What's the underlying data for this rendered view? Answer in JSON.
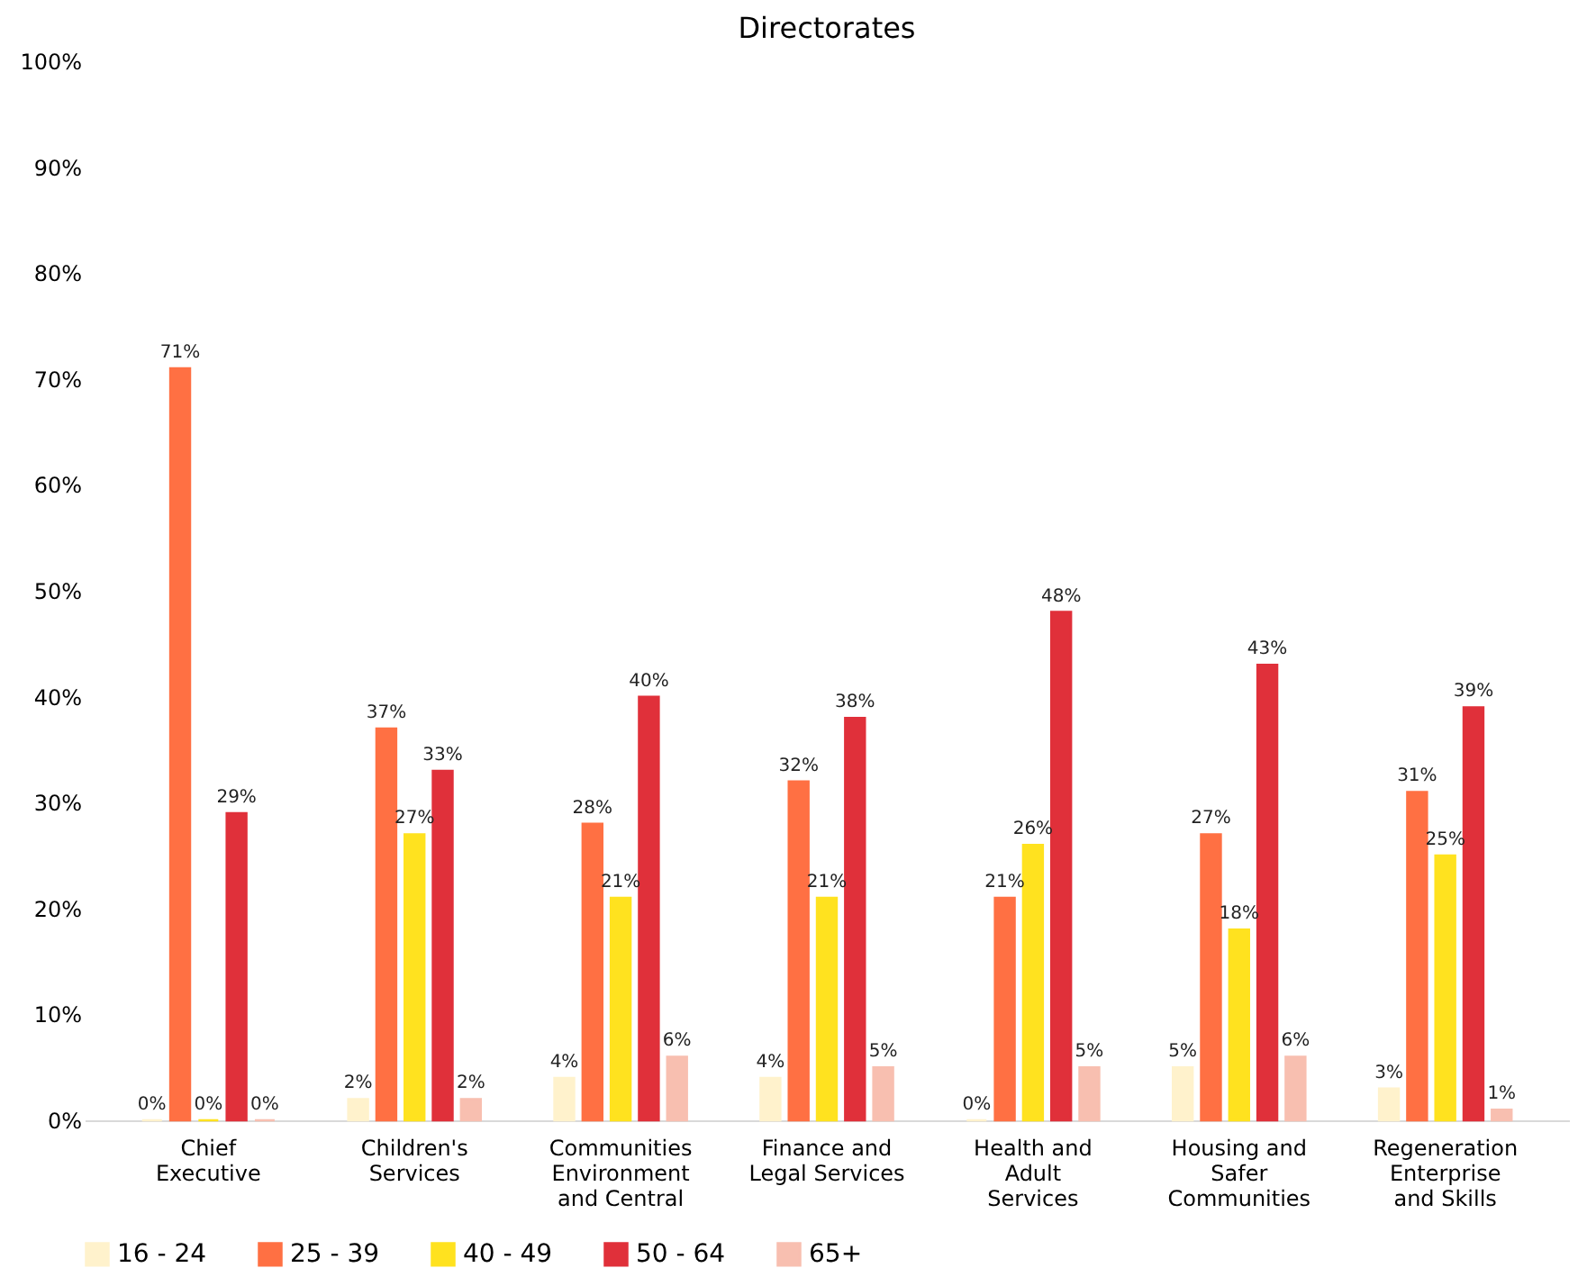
{
  "chart_data": {
    "type": "bar",
    "title": "Directorates",
    "categories": [
      "Chief\nExecutive",
      "Children's\nServices",
      "Communities\nEnvironment\nand Central",
      "Finance and\nLegal Services",
      "Health and\nAdult\nServices",
      "Housing and\nSafer\nCommunities",
      "Regeneration\nEnterprise\nand Skills"
    ],
    "series": [
      {
        "name": "16 - 24",
        "color": "#fff2cc",
        "values": [
          0,
          2,
          4,
          4,
          0,
          5,
          3
        ],
        "value_labels": [
          "0%",
          "2%",
          "4%",
          "4%",
          "0%",
          "5%",
          "3%"
        ]
      },
      {
        "name": "25 - 39",
        "color": "#ff7043",
        "values": [
          71,
          37,
          28,
          32,
          21,
          27,
          31
        ],
        "value_labels": [
          "71%",
          "37%",
          "28%",
          "32%",
          "21%",
          "27%",
          "31%"
        ]
      },
      {
        "name": "40 - 49",
        "color": "#ffe21f",
        "values": [
          0,
          27,
          21,
          21,
          26,
          18,
          25
        ],
        "value_labels": [
          "0%",
          "27%",
          "21%",
          "21%",
          "26%",
          "18%",
          "25%"
        ]
      },
      {
        "name": "50 - 64",
        "color": "#e0303a",
        "values": [
          29,
          33,
          40,
          38,
          48,
          43,
          39
        ],
        "value_labels": [
          "29%",
          "33%",
          "40%",
          "38%",
          "48%",
          "43%",
          "39%"
        ]
      },
      {
        "name": "65+",
        "color": "#f8bfb0",
        "values": [
          0,
          2,
          6,
          5,
          5,
          6,
          1
        ],
        "value_labels": [
          "0%",
          "2%",
          "6%",
          "5%",
          "5%",
          "6%",
          "1%"
        ]
      }
    ],
    "ylim": [
      0,
      100
    ],
    "yticks": [
      {
        "value": 0,
        "label": "0%"
      },
      {
        "value": 10,
        "label": "10%"
      },
      {
        "value": 20,
        "label": "20%"
      },
      {
        "value": 30,
        "label": "30%"
      },
      {
        "value": 40,
        "label": "40%"
      },
      {
        "value": 50,
        "label": "50%"
      },
      {
        "value": 60,
        "label": "60%"
      },
      {
        "value": 70,
        "label": "70%"
      },
      {
        "value": 80,
        "label": "80%"
      },
      {
        "value": 90,
        "label": "90%"
      },
      {
        "value": 100,
        "label": "100%"
      }
    ],
    "grid": false,
    "legend": "bottom"
  }
}
